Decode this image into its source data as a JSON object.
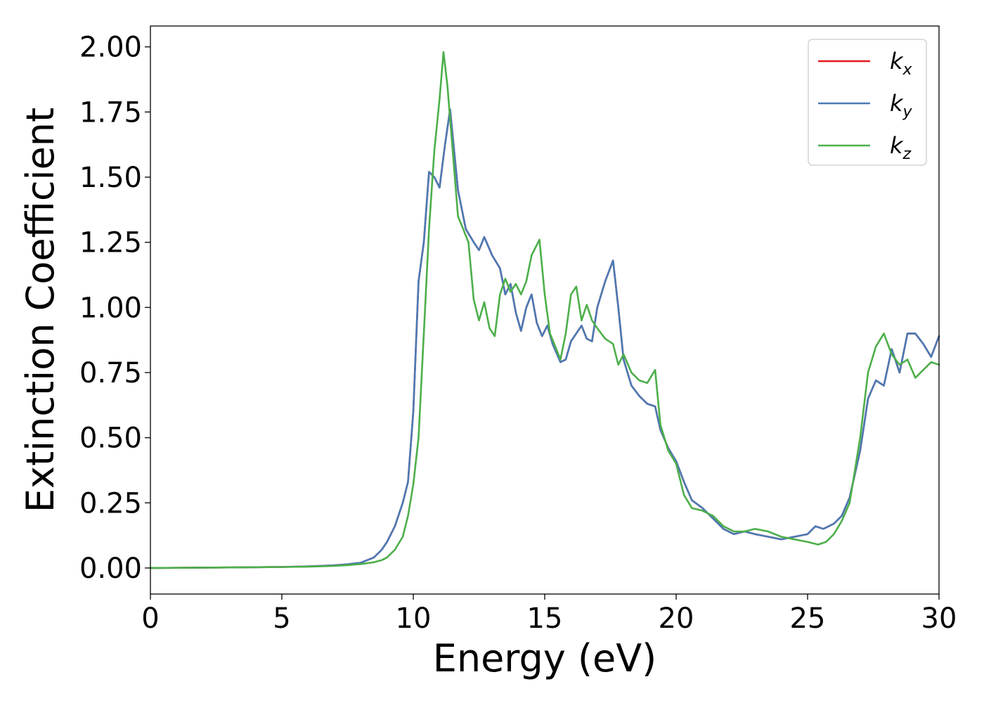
{
  "chart_data": {
    "type": "line",
    "title": "",
    "xlabel": "Energy (eV)",
    "ylabel": "Extinction Coefficient",
    "xlim": [
      0,
      30
    ],
    "ylim": [
      -0.1,
      2.08
    ],
    "xticks": [
      0,
      5,
      10,
      15,
      20,
      25,
      30
    ],
    "xtick_labels": [
      "0",
      "5",
      "10",
      "15",
      "20",
      "25",
      "30"
    ],
    "yticks": [
      0.0,
      0.25,
      0.5,
      0.75,
      1.0,
      1.25,
      1.5,
      1.75,
      2.0
    ],
    "ytick_labels": [
      "0.00",
      "0.25",
      "0.50",
      "0.75",
      "1.00",
      "1.25",
      "1.50",
      "1.75",
      "2.00"
    ],
    "grid": false,
    "legend_position": "top-right",
    "series": [
      {
        "name": "k_x",
        "label_base": "k",
        "label_sub": "x",
        "color": "#e41a1c",
        "x": [
          0,
          3,
          5,
          6,
          7,
          7.5,
          8,
          8.5,
          8.8,
          9.0,
          9.3,
          9.6,
          9.8,
          10.0,
          10.2,
          10.4,
          10.6,
          10.8,
          11.0,
          11.2,
          11.4,
          11.7,
          12.0,
          12.3,
          12.5,
          12.7,
          13.0,
          13.3,
          13.5,
          13.7,
          13.9,
          14.1,
          14.3,
          14.5,
          14.7,
          14.9,
          15.1,
          15.3,
          15.6,
          15.8,
          16.0,
          16.2,
          16.4,
          16.6,
          16.8,
          17.0,
          17.3,
          17.6,
          17.8,
          18.0,
          18.3,
          18.6,
          18.9,
          19.2,
          19.4,
          19.7,
          20.0,
          20.3,
          20.6,
          21.0,
          21.4,
          21.8,
          22.2,
          22.6,
          23.0,
          23.5,
          24.0,
          24.5,
          25.0,
          25.3,
          25.6,
          26.0,
          26.3,
          26.6,
          27.0,
          27.3,
          27.6,
          27.9,
          28.2,
          28.5,
          28.8,
          29.1,
          29.4,
          29.7,
          30.0
        ],
        "y": [
          0,
          0.002,
          0.004,
          0.006,
          0.01,
          0.014,
          0.02,
          0.04,
          0.07,
          0.1,
          0.16,
          0.25,
          0.33,
          0.6,
          1.1,
          1.25,
          1.52,
          1.5,
          1.46,
          1.62,
          1.76,
          1.45,
          1.3,
          1.25,
          1.22,
          1.27,
          1.2,
          1.15,
          1.05,
          1.09,
          0.98,
          0.91,
          1.0,
          1.05,
          0.94,
          0.89,
          0.93,
          0.86,
          0.79,
          0.8,
          0.87,
          0.9,
          0.93,
          0.88,
          0.87,
          1.0,
          1.1,
          1.18,
          1.0,
          0.8,
          0.7,
          0.66,
          0.63,
          0.62,
          0.53,
          0.46,
          0.41,
          0.33,
          0.26,
          0.23,
          0.19,
          0.15,
          0.13,
          0.14,
          0.13,
          0.12,
          0.11,
          0.12,
          0.13,
          0.16,
          0.15,
          0.17,
          0.2,
          0.27,
          0.45,
          0.65,
          0.72,
          0.7,
          0.84,
          0.75,
          0.9,
          0.9,
          0.86,
          0.81,
          0.89
        ]
      },
      {
        "name": "k_y",
        "label_base": "k",
        "label_sub": "y",
        "color": "#4a7ab5",
        "x": [
          0,
          3,
          5,
          6,
          7,
          7.5,
          8,
          8.5,
          8.8,
          9.0,
          9.3,
          9.6,
          9.8,
          10.0,
          10.2,
          10.4,
          10.6,
          10.8,
          11.0,
          11.2,
          11.4,
          11.7,
          12.0,
          12.3,
          12.5,
          12.7,
          13.0,
          13.3,
          13.5,
          13.7,
          13.9,
          14.1,
          14.3,
          14.5,
          14.7,
          14.9,
          15.1,
          15.3,
          15.6,
          15.8,
          16.0,
          16.2,
          16.4,
          16.6,
          16.8,
          17.0,
          17.3,
          17.6,
          17.8,
          18.0,
          18.3,
          18.6,
          18.9,
          19.2,
          19.4,
          19.7,
          20.0,
          20.3,
          20.6,
          21.0,
          21.4,
          21.8,
          22.2,
          22.6,
          23.0,
          23.5,
          24.0,
          24.5,
          25.0,
          25.3,
          25.6,
          26.0,
          26.3,
          26.6,
          27.0,
          27.3,
          27.6,
          27.9,
          28.2,
          28.5,
          28.8,
          29.1,
          29.4,
          29.7,
          30.0
        ],
        "y": [
          0,
          0.002,
          0.004,
          0.006,
          0.01,
          0.014,
          0.02,
          0.04,
          0.07,
          0.1,
          0.16,
          0.25,
          0.33,
          0.6,
          1.1,
          1.25,
          1.52,
          1.5,
          1.46,
          1.62,
          1.76,
          1.45,
          1.3,
          1.25,
          1.22,
          1.27,
          1.2,
          1.15,
          1.05,
          1.09,
          0.98,
          0.91,
          1.0,
          1.05,
          0.94,
          0.89,
          0.93,
          0.86,
          0.79,
          0.8,
          0.87,
          0.9,
          0.93,
          0.88,
          0.87,
          1.0,
          1.1,
          1.18,
          1.0,
          0.8,
          0.7,
          0.66,
          0.63,
          0.62,
          0.53,
          0.46,
          0.41,
          0.33,
          0.26,
          0.23,
          0.19,
          0.15,
          0.13,
          0.14,
          0.13,
          0.12,
          0.11,
          0.12,
          0.13,
          0.16,
          0.15,
          0.17,
          0.2,
          0.27,
          0.45,
          0.65,
          0.72,
          0.7,
          0.84,
          0.75,
          0.9,
          0.9,
          0.86,
          0.81,
          0.89
        ]
      },
      {
        "name": "k_z",
        "label_base": "k",
        "label_sub": "z",
        "color": "#4daf4a",
        "x": [
          0,
          3,
          5,
          6,
          7,
          7.5,
          8,
          8.5,
          8.8,
          9.0,
          9.3,
          9.6,
          9.8,
          10.0,
          10.2,
          10.4,
          10.6,
          10.8,
          11.0,
          11.15,
          11.3,
          11.5,
          11.7,
          11.9,
          12.1,
          12.3,
          12.5,
          12.7,
          12.9,
          13.1,
          13.3,
          13.5,
          13.7,
          13.9,
          14.1,
          14.3,
          14.5,
          14.8,
          15.0,
          15.2,
          15.4,
          15.6,
          15.8,
          16.0,
          16.2,
          16.4,
          16.6,
          16.8,
          17.0,
          17.3,
          17.6,
          17.8,
          18.0,
          18.3,
          18.6,
          18.9,
          19.2,
          19.4,
          19.7,
          20.0,
          20.3,
          20.6,
          21.0,
          21.4,
          21.8,
          22.2,
          22.6,
          23.0,
          23.5,
          24.0,
          24.5,
          25.0,
          25.4,
          25.7,
          26.0,
          26.3,
          26.6,
          27.0,
          27.3,
          27.6,
          27.9,
          28.2,
          28.5,
          28.8,
          29.1,
          29.4,
          29.7,
          30.0
        ],
        "y": [
          0,
          0.002,
          0.004,
          0.005,
          0.008,
          0.011,
          0.015,
          0.022,
          0.03,
          0.04,
          0.07,
          0.12,
          0.2,
          0.32,
          0.5,
          0.9,
          1.3,
          1.6,
          1.8,
          1.98,
          1.85,
          1.6,
          1.35,
          1.3,
          1.25,
          1.03,
          0.95,
          1.02,
          0.92,
          0.89,
          1.05,
          1.11,
          1.06,
          1.09,
          1.05,
          1.1,
          1.2,
          1.26,
          1.05,
          0.9,
          0.85,
          0.8,
          0.9,
          1.05,
          1.08,
          0.95,
          1.01,
          0.95,
          0.92,
          0.88,
          0.86,
          0.78,
          0.82,
          0.75,
          0.72,
          0.71,
          0.76,
          0.55,
          0.45,
          0.4,
          0.28,
          0.23,
          0.22,
          0.2,
          0.16,
          0.14,
          0.14,
          0.15,
          0.14,
          0.12,
          0.11,
          0.1,
          0.09,
          0.1,
          0.13,
          0.18,
          0.25,
          0.5,
          0.75,
          0.85,
          0.9,
          0.82,
          0.78,
          0.8,
          0.73,
          0.76,
          0.79,
          0.78
        ]
      }
    ]
  }
}
